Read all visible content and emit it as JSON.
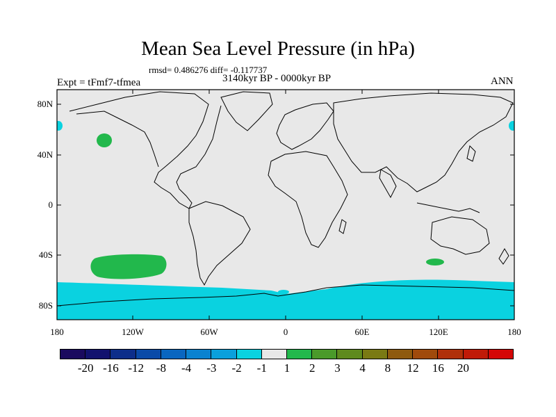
{
  "title": "Mean Sea Level Pressure (in hPa)",
  "stats": "rmsd= 0.486276 diff= -0.117737",
  "period": "3140kyr BP - 0000kyr BP",
  "experiment": "Expt = tFmf7-tfmea",
  "season": "ANN",
  "lat_labels": [
    "80N",
    "40N",
    "0",
    "40S",
    "80S"
  ],
  "lon_labels": [
    "180",
    "120W",
    "60W",
    "0",
    "60E",
    "120E",
    "180"
  ],
  "colorbar": {
    "colors": [
      "#1a0a5e",
      "#12126e",
      "#0d2e8a",
      "#0a4aa8",
      "#0966c0",
      "#0a82d0",
      "#0aa0dc",
      "#0ad2e0",
      "#e8e8e8",
      "#22b84c",
      "#4a9a2a",
      "#5e8a1e",
      "#7a7a14",
      "#8e5a0e",
      "#a04a0c",
      "#b0300a",
      "#c01a08",
      "#d40606"
    ],
    "labels": [
      "-20",
      "-16",
      "-12",
      "-8",
      "-4",
      "-3",
      "-2",
      "-1",
      "1",
      "2",
      "3",
      "4",
      "8",
      "12",
      "16",
      "20"
    ]
  },
  "map": {
    "background_color": "#e8e8e8",
    "features": [
      {
        "name": "antarctic-negative-anomaly",
        "level": "-2 to -1 hPa",
        "color": "#0ad2e0"
      },
      {
        "name": "south-pacific-positive-anomaly",
        "level": "1 to 2 hPa",
        "color": "#22b84c"
      },
      {
        "name": "north-pacific-positive-anomaly",
        "level": "1 to 2 hPa",
        "color": "#22b84c"
      },
      {
        "name": "south-of-australia-positive-anomaly",
        "level": "1 to 2 hPa",
        "color": "#22b84c"
      },
      {
        "name": "arctic-negative-anomaly",
        "level": "-2 to -1 hPa",
        "color": "#0ad2e0"
      }
    ]
  }
}
